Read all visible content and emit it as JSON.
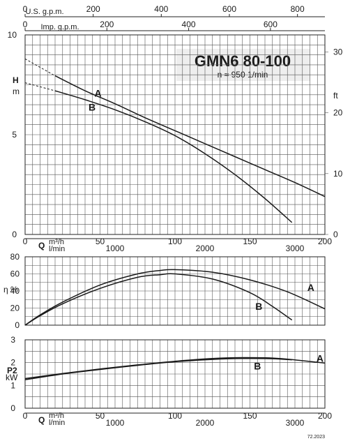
{
  "title": "GMN6 80-100",
  "speed_label": "n ≈ 950 1/min",
  "footer_code": "72.2023",
  "axis_labels": {
    "top_usgpm": "U.S. g.p.m.",
    "top_impgpm": "Imp. g.p.m.",
    "head_h": "H",
    "head_m": "m",
    "head_ft": "ft",
    "q": "Q",
    "q_m3h": "m³/h",
    "q_lmin": "l/min",
    "eta": "η %",
    "p2": "P2",
    "p2_unit": "kW"
  },
  "chart_data": [
    {
      "type": "line",
      "name": "head",
      "x_unit": "m³/h",
      "xlim": [
        0,
        200
      ],
      "ylim": [
        0,
        10
      ],
      "xticks": [
        0,
        50,
        100,
        150,
        200
      ],
      "yticks_labeled": [
        0,
        5,
        10
      ],
      "ylim_ft": [
        0,
        32.8
      ],
      "ft_ticks": [
        0,
        10,
        20,
        30
      ],
      "usgpm_ticks": [
        0,
        200,
        400,
        600,
        800
      ],
      "impgpm_ticks": [
        0,
        200,
        400,
        600
      ],
      "lmin_ticks": [
        1000,
        2000,
        3000
      ],
      "grid": true,
      "series": [
        {
          "name": "A",
          "x": [
            0,
            20,
            40,
            60,
            80,
            100,
            120,
            140,
            160,
            180,
            200
          ],
          "y": [
            8.8,
            7.95,
            7.2,
            6.55,
            5.85,
            5.2,
            4.55,
            3.9,
            3.25,
            2.6,
            1.9
          ]
        },
        {
          "name": "B",
          "x": [
            0,
            20,
            40,
            60,
            80,
            100,
            120,
            140,
            160,
            178
          ],
          "y": [
            7.6,
            7.2,
            6.75,
            6.25,
            5.65,
            4.95,
            4.05,
            3.0,
            1.8,
            0.6
          ]
        }
      ]
    },
    {
      "type": "line",
      "name": "efficiency",
      "ylim": [
        0,
        80
      ],
      "xlim": [
        0,
        200
      ],
      "yticks": [
        0,
        20,
        40,
        60,
        80
      ],
      "grid": true,
      "series": [
        {
          "name": "A",
          "x": [
            0,
            10,
            25,
            50,
            75,
            90,
            100,
            125,
            150,
            175,
            200
          ],
          "y": [
            0,
            12,
            27,
            47,
            60,
            64,
            65,
            62,
            53,
            39,
            19
          ]
        },
        {
          "name": "B",
          "x": [
            0,
            10,
            25,
            50,
            75,
            90,
            100,
            125,
            150,
            165,
            178
          ],
          "y": [
            0,
            11,
            25,
            43,
            56,
            59,
            60,
            54,
            38,
            22,
            6
          ]
        }
      ]
    },
    {
      "type": "line",
      "name": "power",
      "ylim": [
        0,
        3
      ],
      "xlim": [
        0,
        200
      ],
      "yticks": [
        0,
        1,
        2,
        3
      ],
      "grid": true,
      "series": [
        {
          "name": "A",
          "x": [
            0,
            25,
            50,
            75,
            100,
            125,
            145,
            165,
            180,
            200
          ],
          "y": [
            1.3,
            1.52,
            1.72,
            1.9,
            2.06,
            2.18,
            2.22,
            2.2,
            2.12,
            1.98
          ]
        },
        {
          "name": "B",
          "x": [
            0,
            25,
            50,
            75,
            100,
            125,
            145,
            165,
            178
          ],
          "y": [
            1.25,
            1.5,
            1.7,
            1.88,
            2.04,
            2.14,
            2.18,
            2.17,
            2.12
          ]
        }
      ]
    }
  ]
}
